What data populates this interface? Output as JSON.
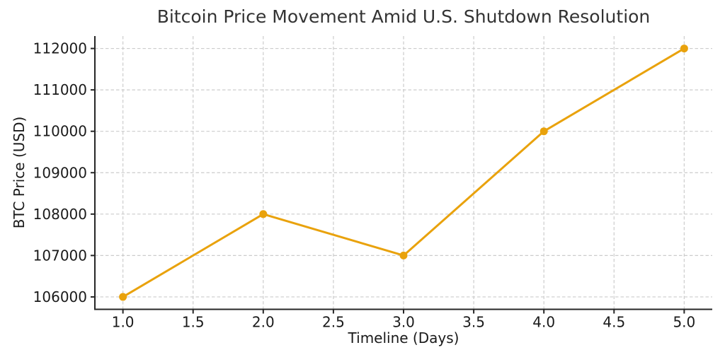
{
  "chart_data": {
    "type": "line",
    "title": "Bitcoin Price Movement Amid U.S. Shutdown Resolution",
    "xlabel": "Timeline (Days)",
    "ylabel": "BTC Price (USD)",
    "x": [
      1,
      2,
      3,
      4,
      5
    ],
    "y": [
      106000,
      108000,
      107000,
      110000,
      112000
    ],
    "xlim": [
      0.8,
      5.2
    ],
    "ylim": [
      105700,
      112300
    ],
    "xticks": [
      1.0,
      1.5,
      2.0,
      2.5,
      3.0,
      3.5,
      4.0,
      4.5,
      5.0
    ],
    "xtick_labels": [
      "1.0",
      "1.5",
      "2.0",
      "2.5",
      "3.0",
      "3.5",
      "4.0",
      "4.5",
      "5.0"
    ],
    "yticks": [
      106000,
      107000,
      108000,
      109000,
      110000,
      111000,
      112000
    ],
    "ytick_labels": [
      "106000",
      "107000",
      "108000",
      "109000",
      "110000",
      "111000",
      "112000"
    ],
    "grid": true,
    "grid_style": "dashed",
    "legend": null,
    "marker": "circle",
    "line_style": "solid",
    "colors": {
      "line": "#E9A20C",
      "grid": "#cccccc",
      "axis": "#262626",
      "text": "#1a1a1a",
      "title": "#333333",
      "background": "#ffffff"
    }
  }
}
